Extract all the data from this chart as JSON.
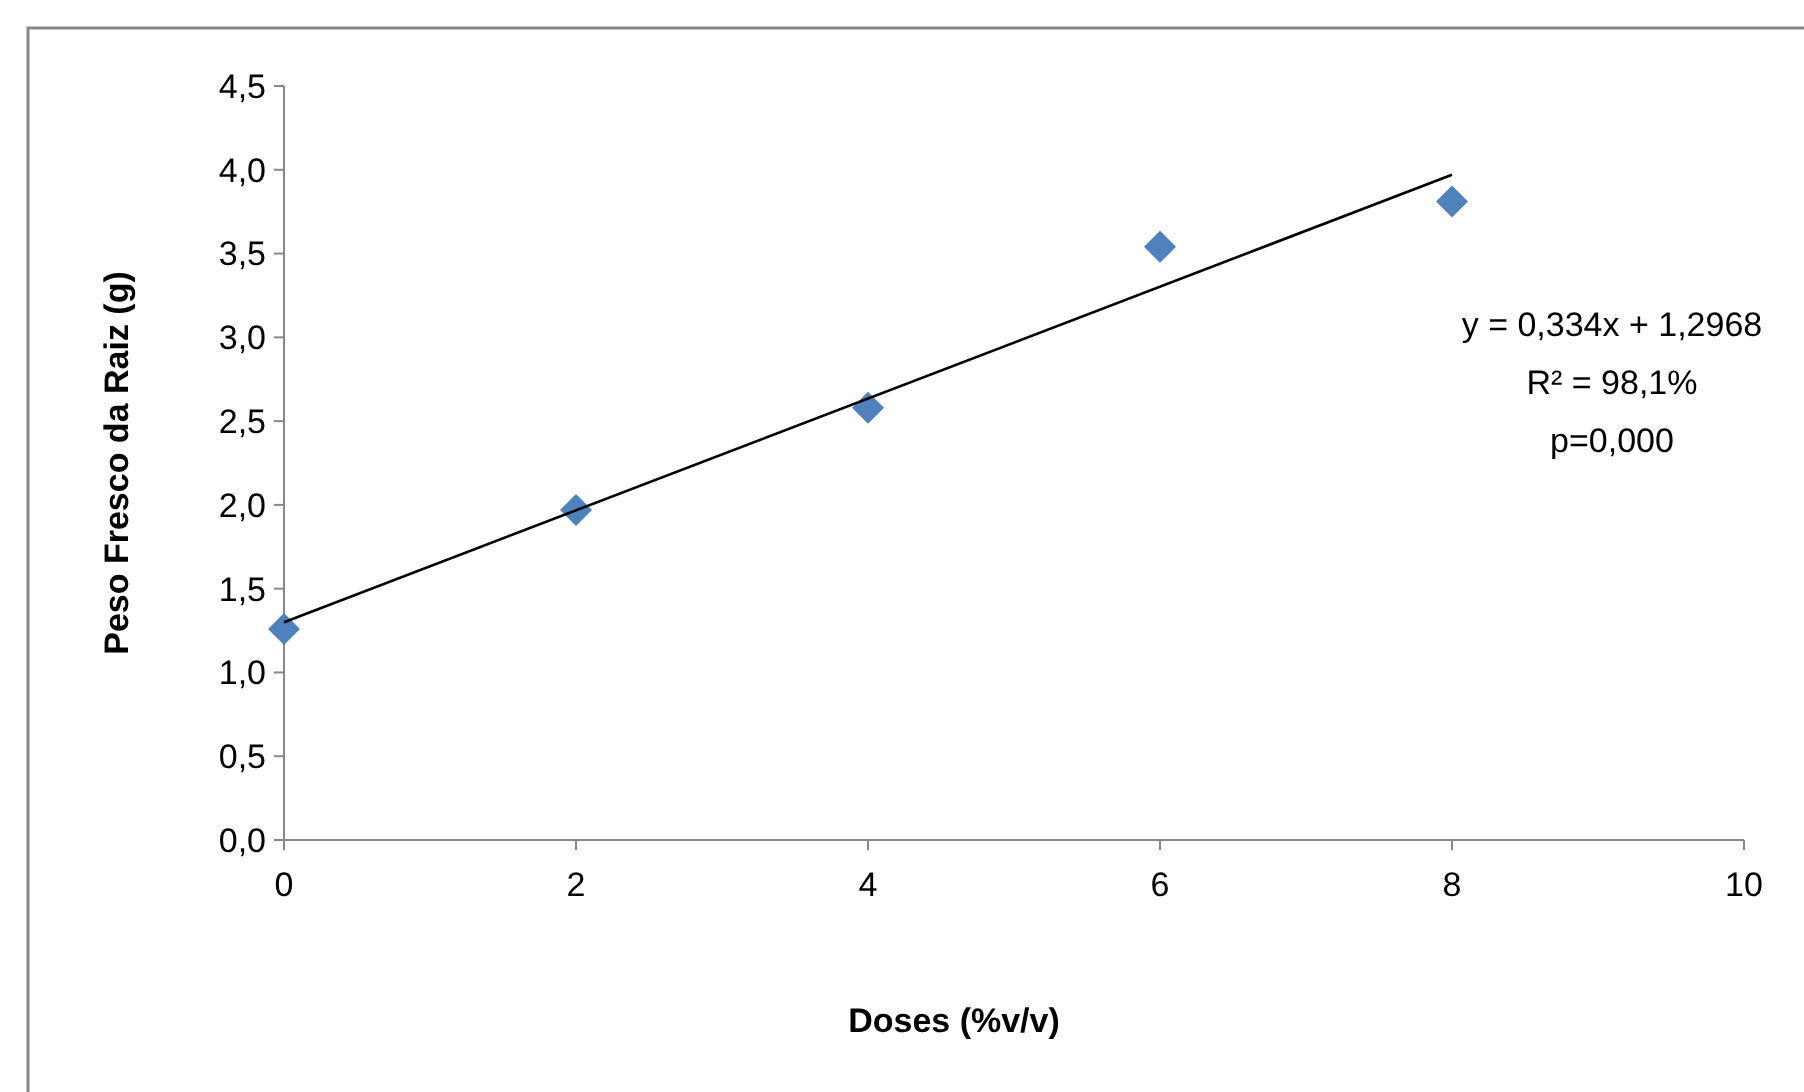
{
  "chart_data": {
    "type": "scatter",
    "xlabel": "Doses (%v/v)",
    "ylabel": "Peso Fresco da Raiz (g)",
    "x": [
      0,
      2,
      4,
      6,
      8
    ],
    "series": [
      {
        "color": "#4f81bd",
        "marker": "diamond",
        "values": [
          1.26,
          1.97,
          2.58,
          3.54,
          3.81
        ]
      },
      {
        "type": "line",
        "color": "#000000",
        "marker": "none",
        "x": [
          0,
          8
        ],
        "values": [
          1.3,
          3.97
        ]
      }
    ],
    "xlim": [
      0,
      10
    ],
    "xticks": [
      0,
      2,
      4,
      6,
      8,
      10
    ],
    "ylim": [
      0,
      4.5
    ],
    "yticks": [
      {
        "value": 0,
        "label": "0,0"
      },
      {
        "value": 0.5,
        "label": "0,5"
      },
      {
        "value": 1,
        "label": "1,0"
      },
      {
        "value": 1.5,
        "label": "1,5"
      },
      {
        "value": 2,
        "label": "2,0"
      },
      {
        "value": 2.5,
        "label": "2,5"
      },
      {
        "value": 3,
        "label": "3,0"
      },
      {
        "value": 3.5,
        "label": "3,5"
      },
      {
        "value": 4,
        "label": "4,0"
      },
      {
        "value": 4.5,
        "label": "4,5"
      }
    ],
    "grid": false,
    "annotations": [
      "y = 0,334x + 1,2968",
      "R² = 98,1%",
      "p=0,000"
    ]
  }
}
